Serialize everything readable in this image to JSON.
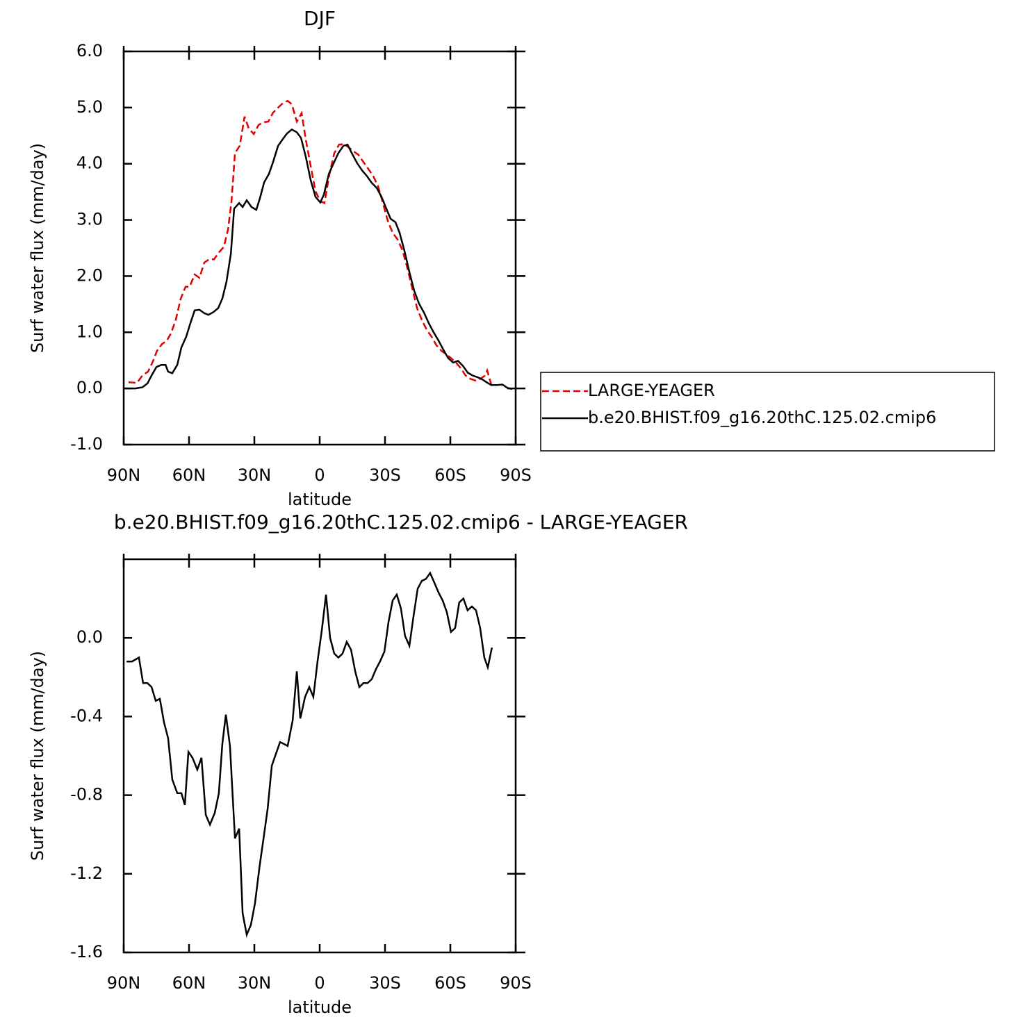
{
  "chart_data": [
    {
      "type": "line",
      "title": "DJF",
      "x_label": "latitude",
      "y_label": "Surf water flux (mm/day)",
      "xlim": [
        90,
        -90
      ],
      "xticks": [
        {
          "value": 90,
          "label": "90N"
        },
        {
          "value": 60,
          "label": "60N"
        },
        {
          "value": 30,
          "label": "30N"
        },
        {
          "value": 0,
          "label": "0"
        },
        {
          "value": -30,
          "label": "30S"
        },
        {
          "value": -60,
          "label": "60S"
        },
        {
          "value": -90,
          "label": "90S"
        }
      ],
      "ylim": [
        -1,
        6
      ],
      "yticks": [
        {
          "value": -1,
          "label": "-1.0"
        },
        {
          "value": 0,
          "label": "0.0"
        },
        {
          "value": 1,
          "label": "1.0"
        },
        {
          "value": 2,
          "label": "2.0"
        },
        {
          "value": 3,
          "label": "3.0"
        },
        {
          "value": 4,
          "label": "4.0"
        },
        {
          "value": 5,
          "label": "5.0"
        },
        {
          "value": 6,
          "label": "6.0"
        }
      ],
      "legend": "right",
      "series": [
        {
          "name": "LARGE-YEAGER",
          "color": "#e00000",
          "line_style": "dashed",
          "x": [
            87.8,
            83.9,
            81.4,
            78.8,
            76.6,
            74.7,
            72.4,
            70.2,
            68.3,
            66.1,
            63.8,
            61.6,
            59.7,
            57.4,
            55.2,
            53.0,
            50.7,
            48.5,
            46.3,
            44.0,
            42.1,
            40.5,
            38.9,
            36.7,
            34.5,
            32.6,
            30.3,
            28.1,
            25.8,
            23.6,
            21.4,
            19.1,
            16.9,
            14.7,
            12.8,
            10.5,
            8.3,
            6.4,
            4.1,
            1.9,
            -0.3,
            -2.2,
            -4.5,
            -6.7,
            -8.9,
            -11.2,
            -13.4,
            -15.6,
            -17.8,
            -20.1,
            -22.3,
            -24.6,
            -26.8,
            -29.1,
            -31.3,
            -33.5,
            -35.8,
            -38.0,
            -40.2,
            -42.5,
            -44.7,
            -46.9,
            -49.2,
            -51.4,
            -53.6,
            -55.9,
            -58.1,
            -60.3,
            -62.6,
            -64.8,
            -67.0,
            -69.3,
            -71.5,
            -73.7,
            -76.0,
            -76.9,
            -78.8
          ],
          "values": [
            0.11,
            0.1,
            0.23,
            0.3,
            0.48,
            0.67,
            0.79,
            0.85,
            0.98,
            1.22,
            1.6,
            1.81,
            1.81,
            2.03,
            1.97,
            2.24,
            2.3,
            2.3,
            2.42,
            2.52,
            2.83,
            3.33,
            4.19,
            4.32,
            4.84,
            4.63,
            4.53,
            4.69,
            4.74,
            4.75,
            4.91,
            5.0,
            5.08,
            5.12,
            5.06,
            4.75,
            4.9,
            4.44,
            3.95,
            3.51,
            3.33,
            3.3,
            3.82,
            4.19,
            4.34,
            4.35,
            4.29,
            4.22,
            4.16,
            4.03,
            3.91,
            3.78,
            3.6,
            3.29,
            2.98,
            2.77,
            2.65,
            2.46,
            2.15,
            1.78,
            1.43,
            1.22,
            1.04,
            0.92,
            0.77,
            0.67,
            0.61,
            0.54,
            0.46,
            0.36,
            0.23,
            0.17,
            0.14,
            0.17,
            0.23,
            0.32,
            0.07
          ]
        },
        {
          "name": "b.e20.BHIST.f09_g16.20thC.125.02.cmip6",
          "color": "#000000",
          "line_style": "solid",
          "x": [
            89.4,
            84.6,
            81.4,
            79.1,
            77.2,
            75.0,
            72.8,
            70.8,
            69.6,
            67.7,
            65.4,
            63.5,
            61.3,
            59.4,
            57.4,
            55.2,
            53.0,
            51.1,
            48.8,
            46.6,
            44.7,
            42.8,
            40.8,
            39.3,
            37.0,
            35.4,
            33.5,
            31.3,
            29.1,
            27.4,
            25.5,
            23.3,
            21.4,
            19.1,
            16.9,
            15.0,
            12.8,
            10.5,
            8.6,
            6.4,
            4.1,
            1.9,
            -0.3,
            -1.9,
            -4.2,
            -6.4,
            -8.6,
            -10.9,
            -12.8,
            -15.0,
            -17.2,
            -19.5,
            -21.7,
            -23.9,
            -26.2,
            -28.4,
            -30.3,
            -32.6,
            -34.8,
            -36.7,
            -39.0,
            -41.2,
            -43.4,
            -45.6,
            -47.9,
            -50.1,
            -52.3,
            -54.6,
            -56.8,
            -59.0,
            -61.3,
            -63.5,
            -65.8,
            -68.0,
            -70.2,
            -72.5,
            -74.7,
            -76.6,
            -78.8,
            -81.4,
            -83.9,
            -86.2,
            -88.4
          ],
          "values": [
            0.0,
            0.0,
            0.02,
            0.09,
            0.23,
            0.38,
            0.42,
            0.42,
            0.3,
            0.27,
            0.42,
            0.73,
            0.92,
            1.16,
            1.39,
            1.4,
            1.34,
            1.31,
            1.36,
            1.43,
            1.6,
            1.9,
            2.4,
            3.2,
            3.3,
            3.23,
            3.35,
            3.23,
            3.18,
            3.39,
            3.67,
            3.82,
            4.03,
            4.32,
            4.44,
            4.54,
            4.61,
            4.56,
            4.46,
            4.13,
            3.7,
            3.41,
            3.31,
            3.45,
            3.82,
            4.01,
            4.19,
            4.32,
            4.34,
            4.17,
            4.01,
            3.88,
            3.78,
            3.66,
            3.57,
            3.41,
            3.23,
            3.02,
            2.96,
            2.77,
            2.44,
            2.07,
            1.74,
            1.51,
            1.35,
            1.16,
            1.0,
            0.85,
            0.69,
            0.54,
            0.46,
            0.49,
            0.4,
            0.28,
            0.23,
            0.2,
            0.16,
            0.11,
            0.06,
            0.06,
            0.07,
            0.01,
            -0.01
          ]
        }
      ]
    },
    {
      "type": "line",
      "title": "b.e20.BHIST.f09_g16.20thC.125.02.cmip6 - LARGE-YEAGER",
      "x_label": "latitude",
      "y_label": "Surf water flux (mm/day)",
      "xlim": [
        90,
        -90
      ],
      "xticks": [
        {
          "value": 90,
          "label": "90N"
        },
        {
          "value": 60,
          "label": "60N"
        },
        {
          "value": 30,
          "label": "30N"
        },
        {
          "value": 0,
          "label": "0"
        },
        {
          "value": -30,
          "label": "30S"
        },
        {
          "value": -60,
          "label": "60S"
        },
        {
          "value": -90,
          "label": "90S"
        }
      ],
      "ylim": [
        -1.6,
        0.4
      ],
      "yticks": [
        -1.6,
        -1.2,
        -0.8,
        -0.4,
        {
          "value": 0,
          "label": "0.0"
        }
      ],
      "series": [
        {
          "color": "#000000",
          "line_style": "solid",
          "x": [
            88.7,
            86.2,
            83.0,
            81.1,
            79.1,
            77.2,
            75.3,
            73.4,
            71.5,
            69.6,
            67.7,
            65.4,
            63.5,
            61.9,
            60.3,
            58.4,
            56.2,
            54.3,
            52.3,
            50.4,
            48.2,
            46.3,
            44.7,
            43.1,
            41.2,
            38.9,
            37.0,
            35.4,
            33.5,
            31.6,
            29.7,
            27.7,
            25.8,
            23.9,
            22.0,
            20.1,
            18.2,
            16.3,
            14.7,
            12.4,
            10.5,
            8.9,
            6.7,
            4.8,
            2.9,
            1.0,
            -1.0,
            -2.9,
            -4.8,
            -6.7,
            -8.6,
            -10.5,
            -12.4,
            -14.4,
            -16.3,
            -18.2,
            -20.1,
            -22.0,
            -23.9,
            -25.8,
            -27.7,
            -29.7,
            -31.6,
            -33.5,
            -35.4,
            -37.3,
            -39.2,
            -41.2,
            -43.1,
            -45.0,
            -46.9,
            -48.8,
            -50.7,
            -52.7,
            -54.6,
            -56.5,
            -58.4,
            -60.3,
            -62.2,
            -64.1,
            -66.0,
            -67.9,
            -69.9,
            -71.8,
            -73.7,
            -75.6,
            -77.2,
            -79.1
          ],
          "values": [
            -0.12,
            -0.12,
            -0.1,
            -0.23,
            -0.23,
            -0.25,
            -0.32,
            -0.31,
            -0.43,
            -0.51,
            -0.72,
            -0.79,
            -0.79,
            -0.85,
            -0.58,
            -0.61,
            -0.67,
            -0.61,
            -0.9,
            -0.95,
            -0.89,
            -0.79,
            -0.54,
            -0.39,
            -0.55,
            -1.02,
            -0.97,
            -1.4,
            -1.51,
            -1.46,
            -1.35,
            -1.17,
            -1.02,
            -0.87,
            -0.65,
            -0.59,
            -0.53,
            -0.54,
            -0.55,
            -0.42,
            -0.17,
            -0.41,
            -0.3,
            -0.25,
            -0.3,
            -0.12,
            0.04,
            0.22,
            0.0,
            -0.08,
            -0.1,
            -0.08,
            -0.02,
            -0.06,
            -0.17,
            -0.25,
            -0.23,
            -0.23,
            -0.21,
            -0.16,
            -0.12,
            -0.07,
            0.08,
            0.19,
            0.22,
            0.15,
            0.01,
            -0.04,
            0.11,
            0.25,
            0.29,
            0.3,
            0.33,
            0.28,
            0.23,
            0.19,
            0.13,
            0.03,
            0.05,
            0.18,
            0.2,
            0.14,
            0.16,
            0.14,
            0.05,
            -0.1,
            -0.15,
            -0.05
          ]
        }
      ]
    }
  ]
}
